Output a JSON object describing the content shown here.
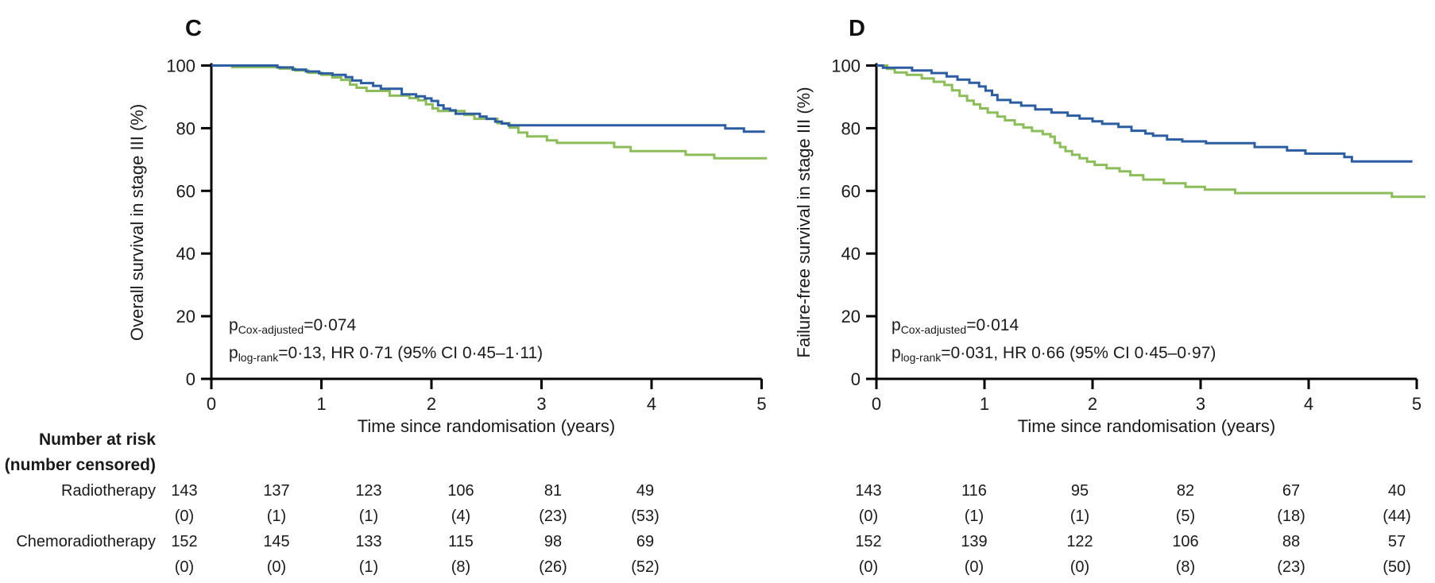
{
  "colors": {
    "blue_curve": "#2D5DA1",
    "green_curve": "#8CBD5A",
    "axis": "#000000",
    "text": "#1a1a1a"
  },
  "chart_data": [
    {
      "type": "line",
      "panel_label": "C",
      "xlabel": "Time since randomisation (years)",
      "ylabel": "Overall survival in stage III (%)",
      "xlim": [
        0,
        5
      ],
      "ylim": [
        0,
        100
      ],
      "x_ticks": [
        0,
        1,
        2,
        3,
        4,
        5
      ],
      "y_ticks": [
        0,
        20,
        40,
        60,
        80,
        100
      ],
      "annotation_line1": {
        "base": "p",
        "sub": "Cox-adjusted",
        "rest": "=0·074"
      },
      "annotation_line2": {
        "base": "p",
        "sub": "log-rank",
        "rest": "=0·13, HR 0·71 (95% CI 0·45–1·11)"
      },
      "series": [
        {
          "name": "green",
          "color": "#8CBD5A",
          "steps": [
            [
              0,
              100
            ],
            [
              0.19,
              99.5
            ],
            [
              0.62,
              99.0
            ],
            [
              0.76,
              98.4
            ],
            [
              0.88,
              97.7
            ],
            [
              1.0,
              97.0
            ],
            [
              1.1,
              96.2
            ],
            [
              1.18,
              95.4
            ],
            [
              1.26,
              93.9
            ],
            [
              1.32,
              92.9
            ],
            [
              1.41,
              91.9
            ],
            [
              1.62,
              90.4
            ],
            [
              1.8,
              89.6
            ],
            [
              1.88,
              88.9
            ],
            [
              1.95,
              87.6
            ],
            [
              2.01,
              86.3
            ],
            [
              2.06,
              85.5
            ],
            [
              2.3,
              84.2
            ],
            [
              2.39,
              83.0
            ],
            [
              2.6,
              81.6
            ],
            [
              2.71,
              80.2
            ],
            [
              2.79,
              78.6
            ],
            [
              2.87,
              77.4
            ],
            [
              3.05,
              76.1
            ],
            [
              3.14,
              75.3
            ],
            [
              3.66,
              74.0
            ],
            [
              3.81,
              72.7
            ],
            [
              4.31,
              71.5
            ],
            [
              4.57,
              70.4
            ],
            [
              5.05,
              70.4
            ]
          ]
        },
        {
          "name": "blue",
          "color": "#2D5DA1",
          "steps": [
            [
              0,
              100
            ],
            [
              0.6,
              99.4
            ],
            [
              0.74,
              98.7
            ],
            [
              0.86,
              98.1
            ],
            [
              0.98,
              97.5
            ],
            [
              1.1,
              97.0
            ],
            [
              1.22,
              96.3
            ],
            [
              1.28,
              95.2
            ],
            [
              1.36,
              94.4
            ],
            [
              1.47,
              93.5
            ],
            [
              1.54,
              92.6
            ],
            [
              1.73,
              90.8
            ],
            [
              1.86,
              90.2
            ],
            [
              1.94,
              89.5
            ],
            [
              2.0,
              88.7
            ],
            [
              2.06,
              87.3
            ],
            [
              2.11,
              86.2
            ],
            [
              2.17,
              85.7
            ],
            [
              2.22,
              84.6
            ],
            [
              2.44,
              83.7
            ],
            [
              2.5,
              83.0
            ],
            [
              2.58,
              82.1
            ],
            [
              2.64,
              81.5
            ],
            [
              2.7,
              80.9
            ],
            [
              4.67,
              79.9
            ],
            [
              4.84,
              78.9
            ],
            [
              5.03,
              78.9
            ]
          ]
        }
      ]
    },
    {
      "type": "line",
      "panel_label": "D",
      "xlabel": "Time since randomisation (years)",
      "ylabel": "Failure-free survival in stage III (%)",
      "xlim": [
        0,
        5
      ],
      "ylim": [
        0,
        100
      ],
      "x_ticks": [
        0,
        1,
        2,
        3,
        4,
        5
      ],
      "y_ticks": [
        0,
        20,
        40,
        60,
        80,
        100
      ],
      "annotation_line1": {
        "base": "p",
        "sub": "Cox-adjusted",
        "rest": "=0·014"
      },
      "annotation_line2": {
        "base": "p",
        "sub": "log-rank",
        "rest": "=0·031, HR 0·66 (95% CI 0·45–0·97)"
      },
      "series": [
        {
          "name": "green",
          "color": "#8CBD5A",
          "steps": [
            [
              0,
              100
            ],
            [
              0.1,
              98.9
            ],
            [
              0.17,
              97.8
            ],
            [
              0.28,
              97.0
            ],
            [
              0.42,
              95.9
            ],
            [
              0.53,
              94.8
            ],
            [
              0.63,
              93.8
            ],
            [
              0.7,
              92.1
            ],
            [
              0.77,
              90.3
            ],
            [
              0.84,
              88.8
            ],
            [
              0.9,
              87.6
            ],
            [
              0.96,
              86.3
            ],
            [
              1.03,
              85.0
            ],
            [
              1.12,
              83.7
            ],
            [
              1.19,
              82.5
            ],
            [
              1.28,
              81.2
            ],
            [
              1.36,
              80.2
            ],
            [
              1.44,
              79.1
            ],
            [
              1.54,
              78.1
            ],
            [
              1.61,
              77.3
            ],
            [
              1.65,
              75.3
            ],
            [
              1.7,
              74.0
            ],
            [
              1.75,
              72.7
            ],
            [
              1.81,
              71.5
            ],
            [
              1.88,
              70.4
            ],
            [
              1.95,
              69.3
            ],
            [
              2.02,
              68.3
            ],
            [
              2.13,
              67.2
            ],
            [
              2.25,
              66.2
            ],
            [
              2.35,
              65.0
            ],
            [
              2.47,
              63.6
            ],
            [
              2.66,
              62.4
            ],
            [
              2.86,
              61.3
            ],
            [
              3.04,
              60.4
            ],
            [
              3.32,
              59.3
            ],
            [
              4.77,
              58.1
            ],
            [
              5.08,
              58.1
            ]
          ]
        },
        {
          "name": "blue",
          "color": "#2D5DA1",
          "steps": [
            [
              0,
              100
            ],
            [
              0.06,
              99.3
            ],
            [
              0.33,
              98.4
            ],
            [
              0.51,
              97.6
            ],
            [
              0.65,
              96.5
            ],
            [
              0.75,
              95.5
            ],
            [
              0.86,
              94.5
            ],
            [
              0.95,
              93.3
            ],
            [
              1.01,
              92.0
            ],
            [
              1.07,
              90.6
            ],
            [
              1.12,
              89.0
            ],
            [
              1.24,
              88.2
            ],
            [
              1.34,
              87.2
            ],
            [
              1.47,
              86.0
            ],
            [
              1.62,
              85.0
            ],
            [
              1.77,
              84.0
            ],
            [
              1.88,
              83.1
            ],
            [
              2.0,
              82.2
            ],
            [
              2.09,
              81.4
            ],
            [
              2.24,
              80.4
            ],
            [
              2.36,
              79.2
            ],
            [
              2.49,
              78.3
            ],
            [
              2.56,
              77.6
            ],
            [
              2.69,
              76.4
            ],
            [
              2.83,
              75.8
            ],
            [
              3.05,
              75.2
            ],
            [
              3.5,
              74.0
            ],
            [
              3.8,
              72.9
            ],
            [
              3.97,
              71.9
            ],
            [
              4.33,
              70.8
            ],
            [
              4.4,
              69.4
            ],
            [
              4.96,
              69.4
            ]
          ]
        }
      ]
    }
  ],
  "risk_table": {
    "header1": "Number at risk",
    "header2": "(number censored)",
    "rows": [
      {
        "label": "Radiotherapy",
        "c_risk": [
          "143",
          "137",
          "123",
          "106",
          "81",
          "49"
        ],
        "c_cens": [
          "(0)",
          "(1)",
          "(1)",
          "(4)",
          "(23)",
          "(53)"
        ],
        "d_risk": [
          "143",
          "116",
          "95",
          "82",
          "67",
          "40"
        ],
        "d_cens": [
          "(0)",
          "(1)",
          "(1)",
          "(5)",
          "(18)",
          "(44)"
        ]
      },
      {
        "label": "Chemoradiotherapy",
        "c_risk": [
          "152",
          "145",
          "133",
          "115",
          "98",
          "69"
        ],
        "c_cens": [
          "(0)",
          "(0)",
          "(1)",
          "(8)",
          "(26)",
          "(52)"
        ],
        "d_risk": [
          "152",
          "139",
          "122",
          "106",
          "88",
          "57"
        ],
        "d_cens": [
          "(0)",
          "(0)",
          "(0)",
          "(8)",
          "(23)",
          "(50)"
        ]
      }
    ]
  }
}
